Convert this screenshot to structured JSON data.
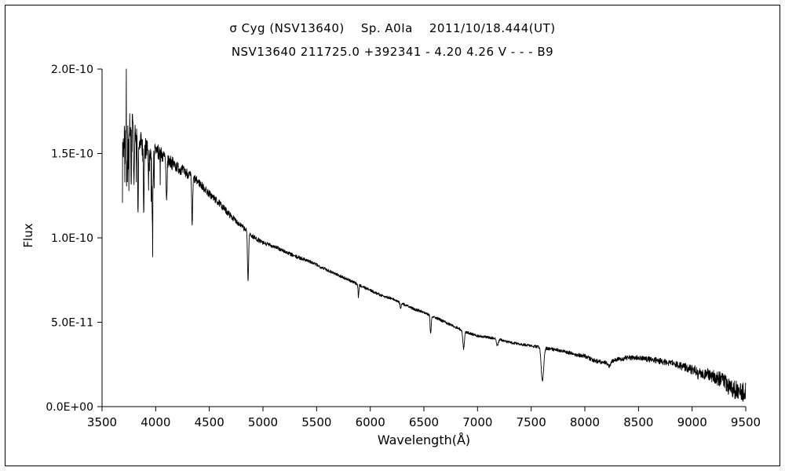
{
  "chart_data": {
    "type": "line",
    "title": "σ Cyg (NSV13640)    Sp. A0Ia    2011/10/18.444(UT)",
    "subtitle": "NSV13640 211725.0 +392341 - 4.20 4.26 V - - - B9",
    "xlabel": "Wavelength(Å)",
    "ylabel": "Flux",
    "xlim": [
      3500,
      9500
    ],
    "ylim": [
      0,
      2.0
    ],
    "y_unit_scale": "1e-10",
    "grid": false,
    "legend": "none",
    "line_color": "#000000",
    "background": "#ffffff",
    "xticks": [
      {
        "value": 3500,
        "label": "3500"
      },
      {
        "value": 4000,
        "label": "4000"
      },
      {
        "value": 4500,
        "label": "4500"
      },
      {
        "value": 5000,
        "label": "5000"
      },
      {
        "value": 5500,
        "label": "5500"
      },
      {
        "value": 6000,
        "label": "6000"
      },
      {
        "value": 6500,
        "label": "6500"
      },
      {
        "value": 7000,
        "label": "7000"
      },
      {
        "value": 7500,
        "label": "7500"
      },
      {
        "value": 8000,
        "label": "8000"
      },
      {
        "value": 8500,
        "label": "8500"
      },
      {
        "value": 9000,
        "label": "9000"
      },
      {
        "value": 9500,
        "label": "9500"
      }
    ],
    "yticks": [
      {
        "value": 0.0,
        "label": "0.0E+00"
      },
      {
        "value": 0.5,
        "label": "5.0E-11"
      },
      {
        "value": 1.0,
        "label": "1.0E-10"
      },
      {
        "value": 1.5,
        "label": "1.5E-10"
      },
      {
        "value": 2.0,
        "label": "2.0E-10"
      }
    ],
    "series": {
      "start": 3690,
      "end": 9500,
      "step": 2
    },
    "continuum": [
      [
        3690,
        1.52
      ],
      [
        3720,
        1.6
      ],
      [
        3760,
        1.66
      ],
      [
        3800,
        1.63
      ],
      [
        3850,
        1.57
      ],
      [
        3900,
        1.53
      ],
      [
        3950,
        1.5
      ],
      [
        4000,
        1.52
      ],
      [
        4100,
        1.47
      ],
      [
        4200,
        1.42
      ],
      [
        4300,
        1.38
      ],
      [
        4400,
        1.33
      ],
      [
        4500,
        1.26
      ],
      [
        4600,
        1.2
      ],
      [
        4700,
        1.13
      ],
      [
        4800,
        1.07
      ],
      [
        4900,
        1.01
      ],
      [
        5000,
        0.97
      ],
      [
        5100,
        0.95
      ],
      [
        5200,
        0.92
      ],
      [
        5300,
        0.89
      ],
      [
        5400,
        0.87
      ],
      [
        5500,
        0.84
      ],
      [
        5600,
        0.81
      ],
      [
        5700,
        0.78
      ],
      [
        5800,
        0.75
      ],
      [
        5900,
        0.72
      ],
      [
        6000,
        0.69
      ],
      [
        6100,
        0.66
      ],
      [
        6200,
        0.64
      ],
      [
        6300,
        0.61
      ],
      [
        6400,
        0.58
      ],
      [
        6500,
        0.56
      ],
      [
        6600,
        0.53
      ],
      [
        6700,
        0.5
      ],
      [
        6800,
        0.47
      ],
      [
        6900,
        0.44
      ],
      [
        7000,
        0.42
      ],
      [
        7100,
        0.41
      ],
      [
        7200,
        0.4
      ],
      [
        7300,
        0.38
      ],
      [
        7400,
        0.37
      ],
      [
        7500,
        0.36
      ],
      [
        7600,
        0.35
      ],
      [
        7700,
        0.34
      ],
      [
        7800,
        0.33
      ],
      [
        7900,
        0.31
      ],
      [
        8000,
        0.3
      ],
      [
        8100,
        0.27
      ],
      [
        8200,
        0.26
      ],
      [
        8300,
        0.28
      ],
      [
        8400,
        0.29
      ],
      [
        8500,
        0.29
      ],
      [
        8600,
        0.28
      ],
      [
        8700,
        0.27
      ],
      [
        8800,
        0.26
      ],
      [
        8900,
        0.24
      ],
      [
        9000,
        0.22
      ],
      [
        9100,
        0.2
      ],
      [
        9200,
        0.18
      ],
      [
        9300,
        0.15
      ],
      [
        9400,
        0.1
      ],
      [
        9500,
        0.08
      ]
    ],
    "absorption_lines": [
      {
        "center": 3734,
        "depth": 0.2,
        "sigma": 3
      },
      {
        "center": 3750,
        "depth": 0.2,
        "sigma": 3
      },
      {
        "center": 3771,
        "depth": 0.22,
        "sigma": 3
      },
      {
        "center": 3798,
        "depth": 0.22,
        "sigma": 4
      },
      {
        "center": 3835,
        "depth": 0.26,
        "sigma": 4
      },
      {
        "center": 3889,
        "depth": 0.24,
        "sigma": 4
      },
      {
        "center": 3933,
        "depth": 0.12,
        "sigma": 3
      },
      {
        "center": 3970,
        "depth": 0.26,
        "sigma": 5
      },
      {
        "center": 4101,
        "depth": 0.18,
        "sigma": 5
      },
      {
        "center": 4340,
        "depth": 0.2,
        "sigma": 5
      },
      {
        "center": 4861,
        "depth": 0.28,
        "sigma": 5
      },
      {
        "center": 5890,
        "depth": 0.1,
        "sigma": 4
      },
      {
        "center": 6283,
        "depth": 0.05,
        "sigma": 5
      },
      {
        "center": 6563,
        "depth": 0.2,
        "sigma": 5
      },
      {
        "center": 6870,
        "depth": 0.24,
        "sigma": 7
      },
      {
        "center": 7186,
        "depth": 0.1,
        "sigma": 9
      },
      {
        "center": 7605,
        "depth": 0.58,
        "sigma": 11
      },
      {
        "center": 8227,
        "depth": 0.08,
        "sigma": 12
      },
      {
        "center": 9060,
        "depth": 0.08,
        "sigma": 10
      },
      {
        "center": 9350,
        "depth": 0.12,
        "sigma": 12
      }
    ],
    "noise": {
      "seed": 7,
      "amplitude": [
        [
          3690,
          0.1
        ],
        [
          3800,
          0.09
        ],
        [
          3900,
          0.07
        ],
        [
          4000,
          0.05
        ],
        [
          4200,
          0.035
        ],
        [
          4400,
          0.025
        ],
        [
          4700,
          0.018
        ],
        [
          5000,
          0.012
        ],
        [
          5500,
          0.01
        ],
        [
          6000,
          0.008
        ],
        [
          6500,
          0.008
        ],
        [
          7000,
          0.008
        ],
        [
          7500,
          0.008
        ],
        [
          8000,
          0.012
        ],
        [
          8500,
          0.015
        ],
        [
          8800,
          0.02
        ],
        [
          9000,
          0.028
        ],
        [
          9200,
          0.04
        ],
        [
          9400,
          0.055
        ],
        [
          9500,
          0.06
        ]
      ],
      "extra_down_spikes": {
        "below": 4050,
        "prob": 0.12,
        "max_depth": 0.22
      }
    },
    "spikes": [
      {
        "x": 3712,
        "y": 1.33
      },
      {
        "x": 3726,
        "y": 2.05
      },
      {
        "x": 9498,
        "y": 0.14
      }
    ]
  }
}
